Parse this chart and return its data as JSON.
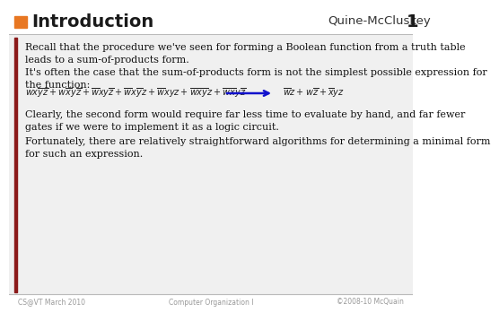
{
  "title_left": "Introduction",
  "title_right": "Quine-McCluskey",
  "slide_number": "1",
  "orange_rect_color": "#E87722",
  "dark_red_bar_color": "#8B1A1A",
  "footer_left": "CS@VT March 2010",
  "footer_center": "Computer Organization I",
  "footer_right": "©2008-10 McQuain",
  "body_bg": "#f0f0f0",
  "header_bg": "#ffffff",
  "para1": "Recall that the procedure we've seen for forming a Boolean function from a truth table\nleads to a sum-of-products form.",
  "para2": "It's often the case that the sum-of-products form is not the simplest possible expression for\nthe function:",
  "para3": "Clearly, the second form would require far less time to evaluate by hand, and far fewer\ngates if we were to implement it as a logic circuit.",
  "para4": "Fortunately, there are relatively straightforward algorithms for determining a minimal form\nfor such an expression.",
  "arrow_color": "#1111CC",
  "title_fontsize": 14,
  "body_fontsize": 8.0,
  "math_fontsize": 7.0,
  "footer_fontsize": 5.5,
  "slide_num_fontsize": 14
}
